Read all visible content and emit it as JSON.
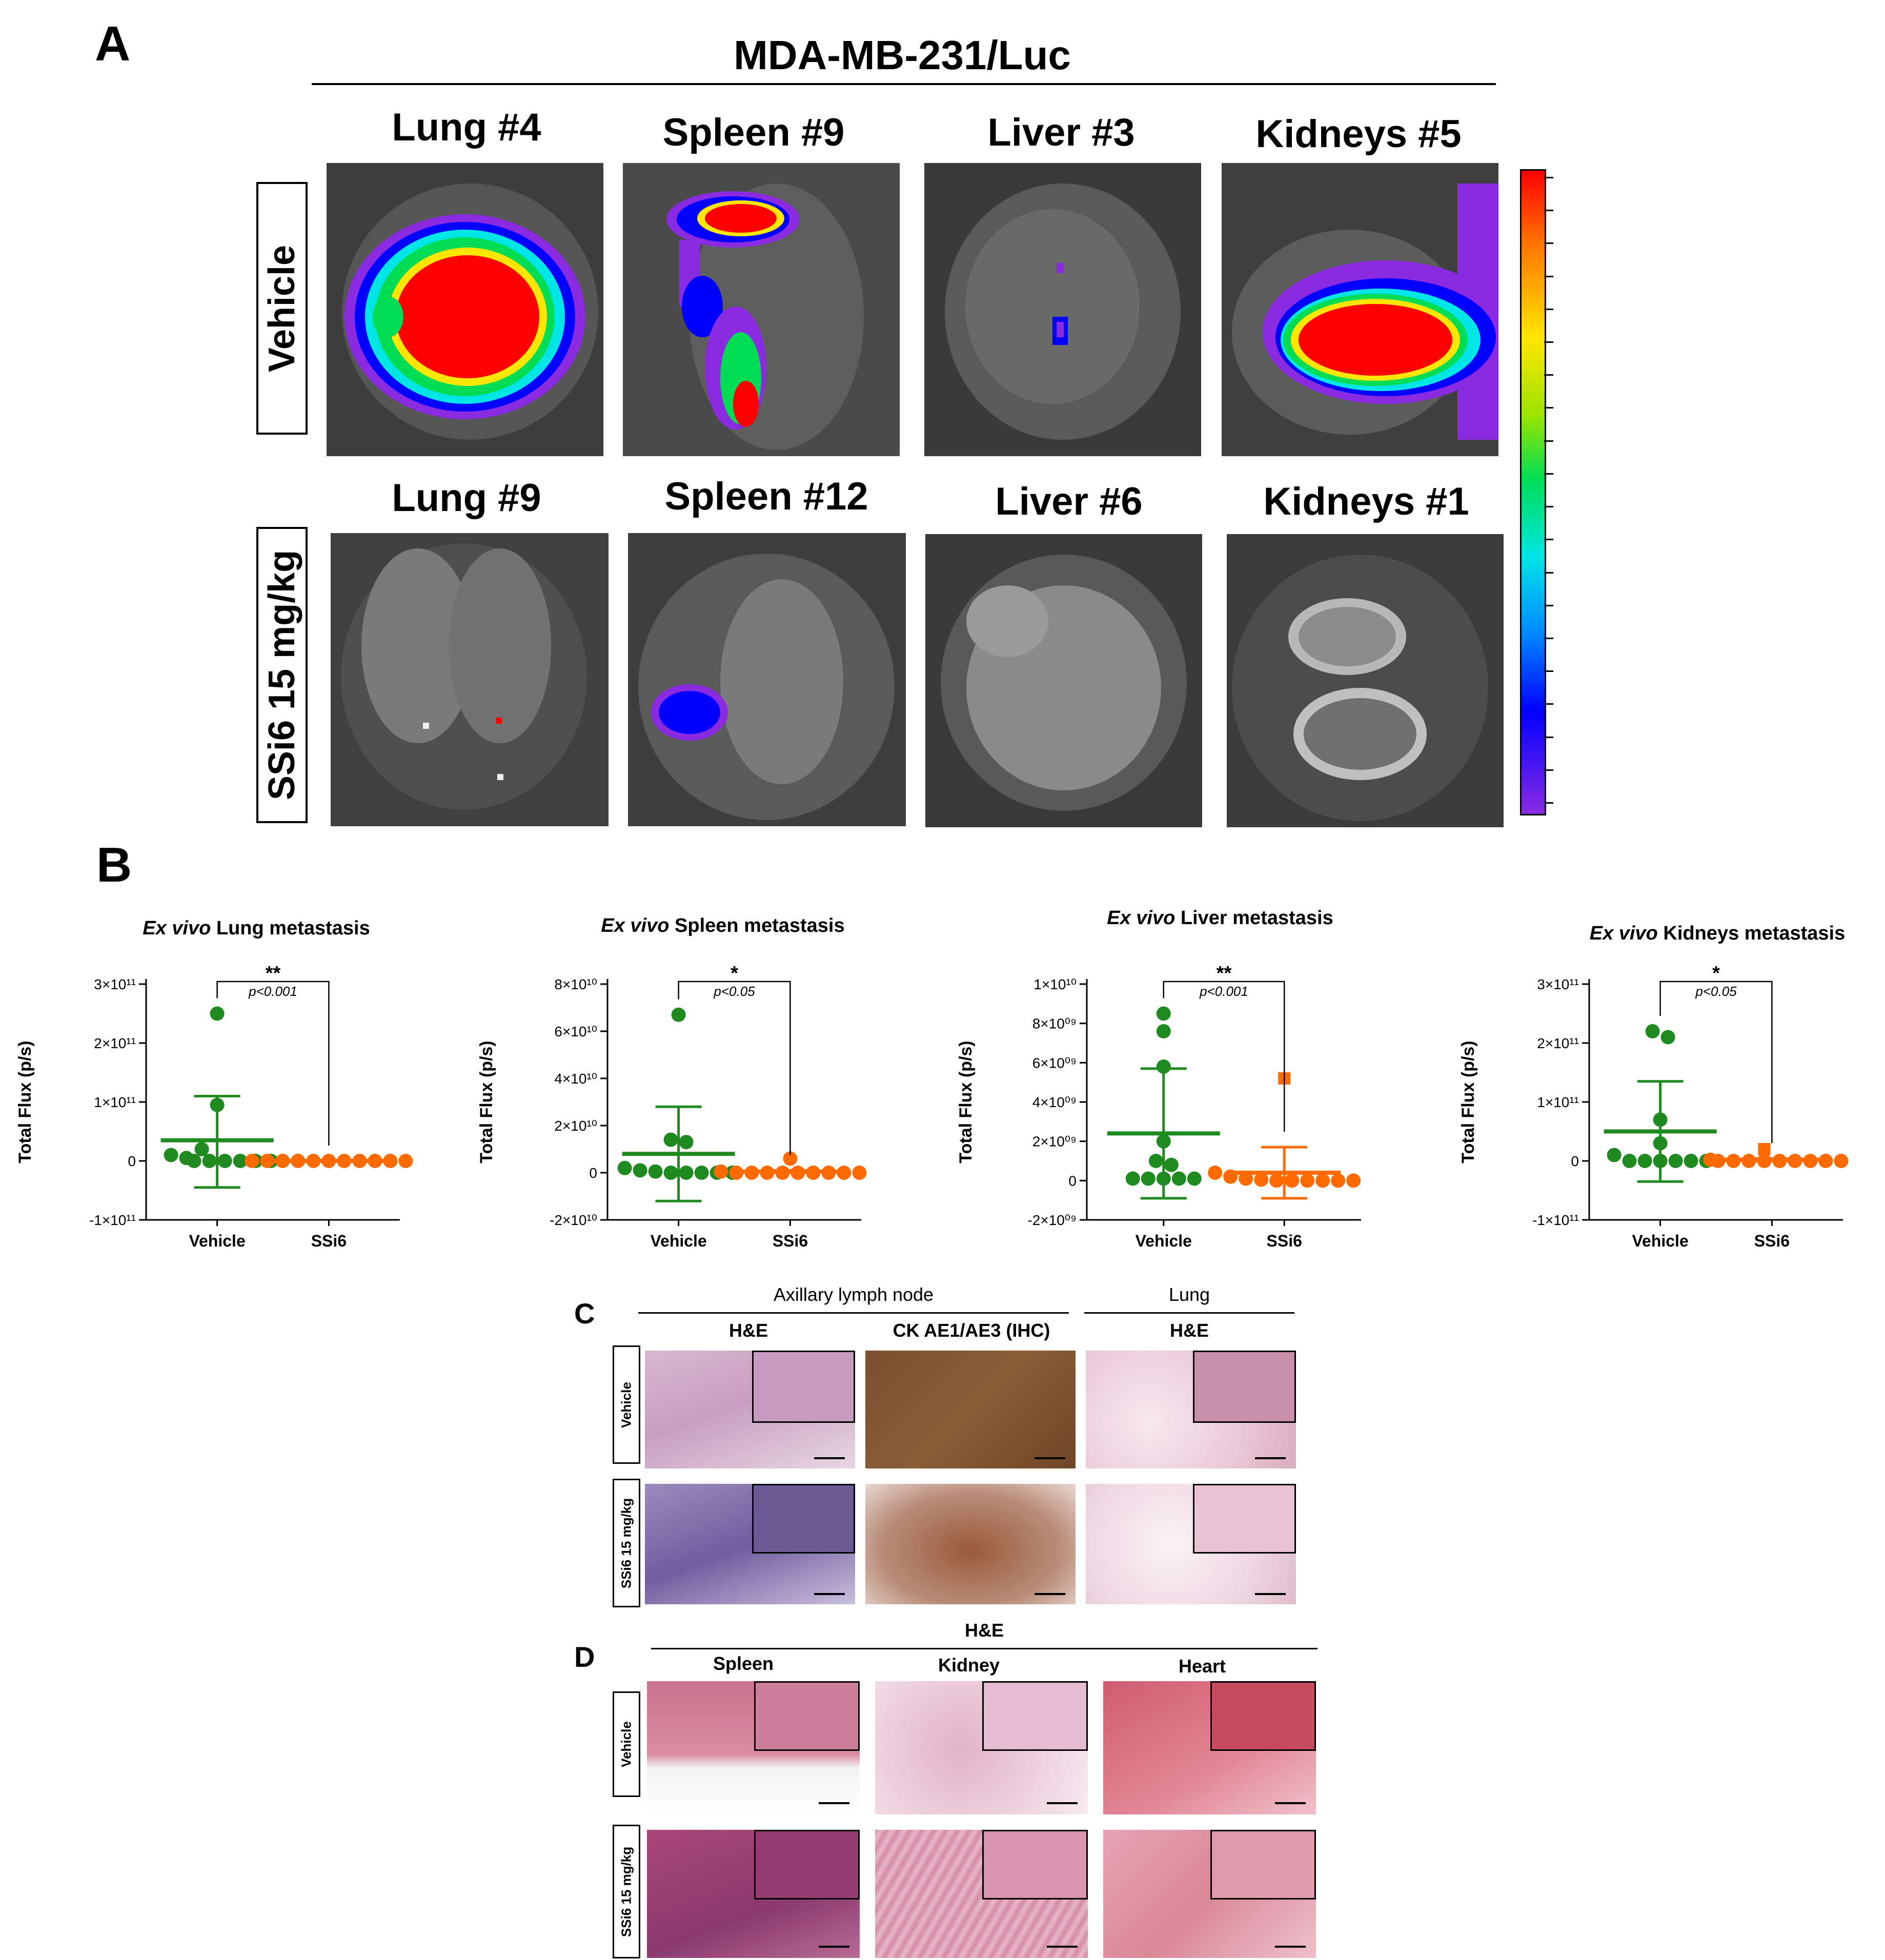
{
  "panelA": {
    "letter": "A",
    "cell_line": "MDA-MB-231/Luc",
    "rows": [
      {
        "label": "Vehicle",
        "organs": [
          "Lung #4",
          "Spleen #9",
          "Liver #3",
          "Kidneys #5"
        ]
      },
      {
        "label": "SSi6 15 mg/kg",
        "organs": [
          "Lung #9",
          "Spleen #12",
          "Liver #6",
          "Kidneys #1"
        ]
      }
    ],
    "colorbar_colors": [
      "#ff0000",
      "#ff7a00",
      "#ffe600",
      "#00dd55",
      "#00e6e6",
      "#0000ff",
      "#8a2be2"
    ]
  },
  "panelB": {
    "letter": "B",
    "vehicle_color": "#1f8a1f",
    "ssi6_color": "#ff6a00"
  },
  "chart_data": [
    {
      "type": "scatter",
      "title_italic": "Ex vivo",
      "title_rest": " Lung metastasis",
      "ylabel": "Total Flux (p/s)",
      "categories": [
        "Vehicle",
        "SSi6"
      ],
      "yticks": [
        "3×10¹¹",
        "2×10¹¹",
        "1×10¹¹",
        "0",
        "-1×10¹¹"
      ],
      "ylim": [
        -100000000000.0,
        300000000000.0
      ],
      "tick_values": [
        300000000000.0,
        200000000000.0,
        100000000000.0,
        0,
        -100000000000.0
      ],
      "sig": "**",
      "pvalue": "p<0.001",
      "series": [
        {
          "name": "",
          "points": [
            250000000000.0,
            95000000000.0,
            20000000000.0,
            10000000000.0,
            5000000000.0,
            0.0,
            0.0,
            0.0,
            0.0,
            0.0,
            0.0
          ],
          "mean": 35000000000.0,
          "sd_low": -45000000000.0,
          "sd_high": 110000000000.0,
          "marker": "circle"
        },
        {
          "name": "",
          "points": [
            0.0,
            0.0,
            0.0,
            0.0,
            0.0,
            0.0,
            0.0,
            0.0,
            0.0,
            0.0,
            0.0
          ],
          "mean": 0.0,
          "sd_low": 0.0,
          "sd_high": 0.0,
          "marker": "circle"
        }
      ]
    },
    {
      "type": "scatter",
      "title_italic": "Ex vivo",
      "title_rest": " Spleen metastasis",
      "ylabel": "Total Flux (p/s)",
      "categories": [
        "Vehicle",
        "SSi6"
      ],
      "yticks": [
        "8×10¹⁰",
        "6×10¹⁰",
        "4×10¹⁰",
        "2×10¹⁰",
        "0",
        "-2×10¹⁰"
      ],
      "ylim": [
        -20000000000.0,
        80000000000.0
      ],
      "tick_values": [
        80000000000.0,
        60000000000.0,
        40000000000.0,
        20000000000.0,
        0,
        -20000000000.0
      ],
      "sig": "*",
      "pvalue": "p<0.05",
      "series": [
        {
          "name": "",
          "points": [
            67000000000.0,
            14000000000.0,
            13000000000.0,
            2000000000.0,
            1000000000.0,
            500000000.0,
            0.0,
            0.0,
            0.0,
            0.0,
            0.0
          ],
          "mean": 8000000000.0,
          "sd_low": -12000000000.0,
          "sd_high": 28000000000.0,
          "marker": "circle"
        },
        {
          "name": "",
          "points": [
            6000000000.0,
            500000000.0,
            0.0,
            0.0,
            0.0,
            0.0,
            0.0,
            0.0,
            0.0,
            0.0,
            0.0
          ],
          "mean": 500000000.0,
          "sd_low": 0.0,
          "sd_high": 1000000000.0,
          "marker": "circle"
        }
      ]
    },
    {
      "type": "scatter",
      "title_italic": "Ex vivo",
      "title_rest": " Liver metastasis",
      "ylabel": "Total Flux (p/s)",
      "categories": [
        "Vehicle",
        "SSi6"
      ],
      "yticks": [
        "1×10¹⁰",
        "8×10⁰⁹",
        "6×10⁰⁹",
        "4×10⁰⁹",
        "2×10⁰⁹",
        "0",
        "-2×10⁰⁹"
      ],
      "ylim": [
        -2000000000.0,
        10000000000.0
      ],
      "tick_values": [
        10000000000.0,
        8000000000.0,
        6000000000.0,
        4000000000.0,
        2000000000.0,
        0,
        -2000000000.0
      ],
      "sig": "**",
      "pvalue": "p<0.001",
      "series": [
        {
          "name": "",
          "points": [
            8500000000.0,
            7600000000.0,
            5800000000.0,
            2000000000.0,
            1000000000.0,
            800000000.0,
            100000000.0,
            100000000.0,
            100000000.0,
            100000000.0,
            100000000.0
          ],
          "mean": 2400000000.0,
          "sd_low": -900000000.0,
          "sd_high": 5700000000.0,
          "marker": "circle"
        },
        {
          "name": "",
          "points": [
            5200000000.0,
            400000000.0,
            200000000.0,
            100000000.0,
            50000000.0,
            0.0,
            0.0,
            0.0,
            0.0,
            0.0,
            0.0
          ],
          "mean": 400000000.0,
          "sd_low": -900000000.0,
          "sd_high": 1700000000.0,
          "marker": "square"
        }
      ]
    },
    {
      "type": "scatter",
      "title_italic": "Ex vivo",
      "title_rest": " Kidneys metastasis",
      "ylabel": "Total Flux (p/s)",
      "categories": [
        "Vehicle",
        "SSi6"
      ],
      "yticks": [
        "3×10¹¹",
        "2×10¹¹",
        "1×10¹¹",
        "0",
        "-1×10¹¹"
      ],
      "ylim": [
        -100000000000.0,
        300000000000.0
      ],
      "tick_values": [
        300000000000.0,
        200000000000.0,
        100000000000.0,
        0,
        -100000000000.0
      ],
      "sig": "*",
      "pvalue": "p<0.05",
      "series": [
        {
          "name": "",
          "points": [
            220000000000.0,
            210000000000.0,
            70000000000.0,
            30000000000.0,
            10000000000.0,
            0.0,
            0.0,
            0.0,
            0.0,
            0.0,
            0.0
          ],
          "mean": 50000000000.0,
          "sd_low": -35000000000.0,
          "sd_high": 135000000000.0,
          "marker": "circle"
        },
        {
          "name": "",
          "points": [
            20000000000.0,
            2000000000.0,
            0.0,
            0.0,
            0.0,
            0.0,
            0.0,
            0.0,
            0.0,
            0.0,
            0.0
          ],
          "mean": 2000000000.0,
          "sd_low": 0.0,
          "sd_high": 4000000000.0,
          "marker": "square"
        }
      ]
    }
  ],
  "panelC": {
    "letter": "C",
    "group_left": "Axillary lymph node",
    "group_right": "Lung",
    "col_he1": "H&E",
    "col_ck": "CK AE1/AE3 (IHC)",
    "col_he2": "H&E",
    "row_vehicle": "Vehicle",
    "row_ssi6": "SSi6 15 mg/kg"
  },
  "panelD": {
    "letter": "D",
    "group": "H&E",
    "col_spleen": "Spleen",
    "col_kidney": "Kidney",
    "col_heart": "Heart",
    "row_vehicle": "Vehicle",
    "row_ssi6": "SSi6 15 mg/kg"
  }
}
